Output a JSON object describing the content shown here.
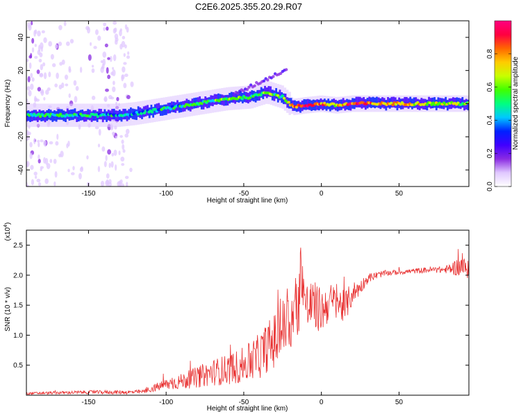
{
  "title": "C2E6.2025.355.20.29.R07",
  "chart_data": [
    {
      "type": "heatmap",
      "xlabel": "Height of straight line (km)",
      "ylabel": "Frequency (Hz)",
      "xlim": [
        -190,
        95
      ],
      "ylim": [
        -50,
        50
      ],
      "xticks": [
        -150,
        -100,
        -50,
        0,
        50
      ],
      "yticks": [
        -40,
        -20,
        0,
        20,
        40
      ],
      "ridge": {
        "x": [
          -190,
          -170,
          -150,
          -130,
          -120,
          -100,
          -80,
          -60,
          -45,
          -35,
          -25,
          -18,
          -10,
          0,
          10,
          20,
          40,
          60,
          80,
          95
        ],
        "frequency": [
          -7,
          -7,
          -7,
          -7,
          -6,
          -3,
          0,
          3,
          4,
          7,
          4,
          -2,
          -1,
          0,
          -1,
          0,
          0,
          0,
          0,
          0
        ],
        "amplitude": [
          0.45,
          0.5,
          0.48,
          0.45,
          0.42,
          0.45,
          0.5,
          0.55,
          0.58,
          0.6,
          0.55,
          0.75,
          0.9,
          0.8,
          0.7,
          0.9,
          0.75,
          0.7,
          0.65,
          0.6
        ]
      },
      "colorbar": {
        "label": "Normalized spectral amplitude",
        "range": [
          0,
          1
        ],
        "ticks": [
          "0.0",
          "0.2",
          "0.4",
          "0.6",
          "0.8"
        ],
        "tick_values": [
          0.0,
          0.2,
          0.4,
          0.6,
          0.8
        ],
        "colors": [
          "#ffffff",
          "#e0c8ff",
          "#8a2be2",
          "#4000ff",
          "#0020ff",
          "#00c8ff",
          "#00ff80",
          "#40ff00",
          "#c8ff00",
          "#ffcc00",
          "#ff6600",
          "#ff0040",
          "#ff0080"
        ]
      }
    },
    {
      "type": "line",
      "xlabel": "Height of straight line (km)",
      "ylabel": "SNR (10 * v/v)",
      "y_multiplier": "(x10^4)",
      "multiplier_base": "(x10",
      "multiplier_exp": "4",
      "multiplier_close": ")",
      "xlim": [
        -190,
        95
      ],
      "ylim": [
        0,
        27500
      ],
      "xticks": [
        -150,
        -100,
        -50,
        0,
        50
      ],
      "yticks": [
        5000,
        10000,
        15000,
        20000,
        25000
      ],
      "ytick_labels": [
        "0.5",
        "1.0",
        "1.5",
        "2.0",
        "2.5"
      ],
      "color": "#e83030",
      "series": [
        {
          "x": [
            -190,
            -170,
            -150,
            -130,
            -120,
            -115,
            -100,
            -90,
            -80,
            -70,
            -60,
            -50,
            -40,
            -35,
            -30,
            -25,
            -20,
            -15,
            -13,
            -10,
            -5,
            0,
            5,
            10,
            15,
            20,
            25,
            30,
            40,
            50,
            60,
            70,
            80,
            90,
            95
          ],
          "values": [
            300,
            400,
            500,
            500,
            500,
            600,
            1800,
            2300,
            3000,
            3800,
            4300,
            5000,
            6500,
            8000,
            9000,
            11000,
            12500,
            14000,
            22000,
            14500,
            15000,
            14000,
            15500,
            15500,
            14500,
            17000,
            18000,
            19500,
            20300,
            20500,
            20700,
            20900,
            20900,
            21500,
            20800
          ],
          "noise": [
            200,
            250,
            300,
            350,
            350,
            350,
            1000,
            1300,
            1800,
            2200,
            2600,
            3000,
            3800,
            4200,
            4800,
            5200,
            5500,
            6000,
            5000,
            4800,
            4200,
            3800,
            3200,
            3000,
            2800,
            2000,
            1200,
            800,
            500,
            400,
            450,
            500,
            600,
            1800,
            1500
          ]
        }
      ]
    }
  ]
}
